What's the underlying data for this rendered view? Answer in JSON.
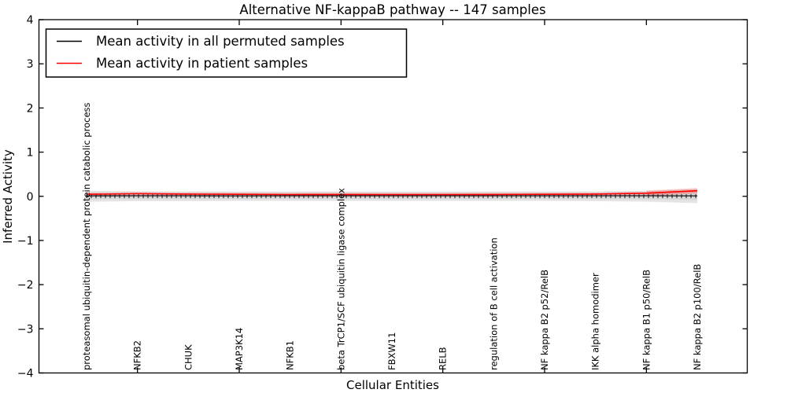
{
  "chart_data": {
    "type": "line",
    "title": "Alternative NF-kappaB pathway -- 147 samples",
    "xlabel": "Cellular Entities",
    "ylabel": "Inferred Activity",
    "ylim": [
      -4,
      4
    ],
    "yticks": [
      4,
      3,
      2,
      1,
      0,
      -1,
      -2,
      -3,
      -4
    ],
    "grid": false,
    "legend_position": "upper left",
    "sample_count": "147 samples",
    "categories": [
      "proteasomal ubiquitin-dependent protein catabolic process",
      "NFKB2",
      "CHUK",
      "MAP3K14",
      "NFKB1",
      "beta TrCP1/SCF ubiquitin ligase complex",
      "FBXW11",
      "RELB",
      "regulation of B cell activation",
      "NF kappa B2 p52/RelB",
      "IKK alpha homodimer",
      "NF kappa B1 p50/RelB",
      "NF kappa B2 p100/RelB"
    ],
    "xtick_indices": [
      1,
      3,
      5,
      7,
      9,
      11
    ],
    "series": [
      {
        "name": "Mean activity in all permuted samples",
        "color": "#000000",
        "marker": "+",
        "values": [
          0.01,
          0.012,
          0.012,
          0.01,
          0.012,
          0.012,
          0.012,
          0.012,
          0.012,
          0.012,
          0.012,
          0.012,
          0.01
        ]
      },
      {
        "name": "Mean activity in patient samples",
        "color": "#ff0000",
        "marker": "none",
        "values": [
          0.045,
          0.06,
          0.05,
          0.045,
          0.04,
          0.042,
          0.04,
          0.04,
          0.042,
          0.045,
          0.05,
          0.07,
          0.125
        ]
      }
    ],
    "band": {
      "name": "permuted activity spread",
      "color": "#e4e4e4",
      "inner_color": "#d7d7d7",
      "upper": [
        0.125,
        0.11,
        0.11,
        0.11,
        0.11,
        0.11,
        0.11,
        0.11,
        0.11,
        0.11,
        0.11,
        0.12,
        0.155
      ],
      "lower": [
        -0.125,
        -0.11,
        -0.11,
        -0.105,
        -0.105,
        -0.105,
        -0.105,
        -0.105,
        -0.105,
        -0.105,
        -0.11,
        -0.12,
        -0.155
      ]
    }
  }
}
